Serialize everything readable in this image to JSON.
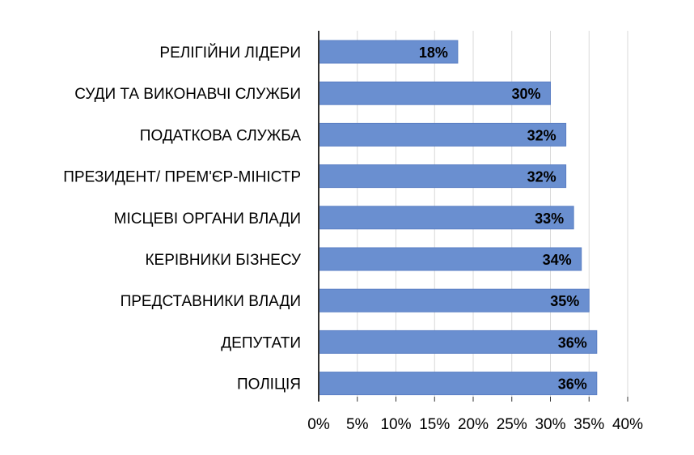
{
  "chart_data": {
    "type": "bar",
    "orientation": "horizontal",
    "categories": [
      "РЕЛІГІЙНИ ЛІДЕРИ",
      "СУДИ ТА ВИКОНАВЧІ СЛУЖБИ",
      "ПОДАТКОВА СЛУЖБА",
      "ПРЕЗИДЕНТ/ ПРЕМ'ЄР-МІНІСТР",
      "МІСЦЕВІ ОРГАНИ ВЛАДИ",
      "КЕРІВНИКИ БІЗНЕСУ",
      "ПРЕДСТАВНИКИ ВЛАДИ",
      "ДЕПУТАТИ",
      "ПОЛІЦІЯ"
    ],
    "values": [
      18,
      30,
      32,
      32,
      33,
      34,
      35,
      36,
      36
    ],
    "data_labels": [
      "18%",
      "30%",
      "32%",
      "32%",
      "33%",
      "34%",
      "35%",
      "36%",
      "36%"
    ],
    "xlim": [
      0,
      40
    ],
    "x_ticks": [
      0,
      5,
      10,
      15,
      20,
      25,
      30,
      35,
      40
    ],
    "x_tick_labels": [
      "0%",
      "5%",
      "10%",
      "15%",
      "20%",
      "25%",
      "30%",
      "35%",
      "40%"
    ],
    "grid": true,
    "legend": "none",
    "colors": {
      "bar_fill": "#6a8fd0",
      "bar_stroke": "#5b7fc4",
      "grid": "#d9d9d9",
      "axis": "#333333"
    }
  }
}
